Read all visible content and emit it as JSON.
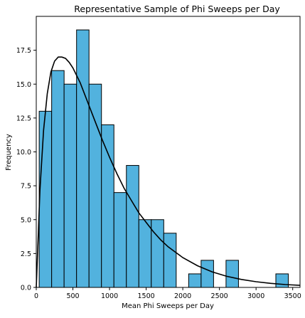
{
  "chart_data": {
    "type": "bar",
    "title": "Representative Sample of Phi Sweeps per Day",
    "xlabel": "Mean Phi Sweeps per Day",
    "ylabel": "Frequency",
    "xlim": [
      0,
      3600
    ],
    "ylim": [
      0,
      20
    ],
    "xticks": [
      0,
      500,
      1000,
      1500,
      2000,
      2500,
      3000,
      3500
    ],
    "xtick_labels": [
      "0",
      "500",
      "1000",
      "1500",
      "2000",
      "2500",
      "3000",
      "3500"
    ],
    "yticks": [
      0,
      2.5,
      5,
      7.5,
      10,
      12.5,
      15,
      17.5
    ],
    "ytick_labels": [
      "0.0",
      "2.5",
      "5.0",
      "7.5",
      "10.0",
      "12.5",
      "15.0",
      "17.5"
    ],
    "grid": false,
    "bin_edges": [
      40,
      210,
      380,
      550,
      720,
      890,
      1060,
      1230,
      1400,
      1570,
      1740,
      1910,
      2080,
      2250,
      2420,
      2590,
      2760,
      2930,
      3100,
      3270,
      3440
    ],
    "values": [
      13,
      16,
      15,
      19,
      15,
      12,
      7,
      9,
      5,
      5,
      4,
      0,
      1,
      2,
      0,
      2,
      0,
      0,
      0,
      1
    ],
    "bar_color": "#52b2de",
    "edge_color": "#000000",
    "fit_curve": {
      "description_points_x": [
        0,
        50,
        100,
        150,
        200,
        250,
        300,
        350,
        400,
        450,
        500,
        600,
        700,
        800,
        900,
        1000,
        1100,
        1200,
        1300,
        1400,
        1500,
        1600,
        1700,
        1800,
        1900,
        2000,
        2200,
        2400,
        2600,
        2800,
        3000,
        3200,
        3400,
        3600
      ],
      "description_points_y": [
        0,
        7.2,
        11.6,
        14.3,
        15.9,
        16.7,
        17.0,
        17.0,
        16.9,
        16.6,
        16.2,
        15.1,
        13.7,
        12.3,
        10.9,
        9.6,
        8.4,
        7.3,
        6.4,
        5.5,
        4.8,
        4.1,
        3.5,
        3.0,
        2.6,
        2.2,
        1.6,
        1.15,
        0.82,
        0.59,
        0.42,
        0.3,
        0.21,
        0.15
      ],
      "color": "#000000"
    }
  }
}
